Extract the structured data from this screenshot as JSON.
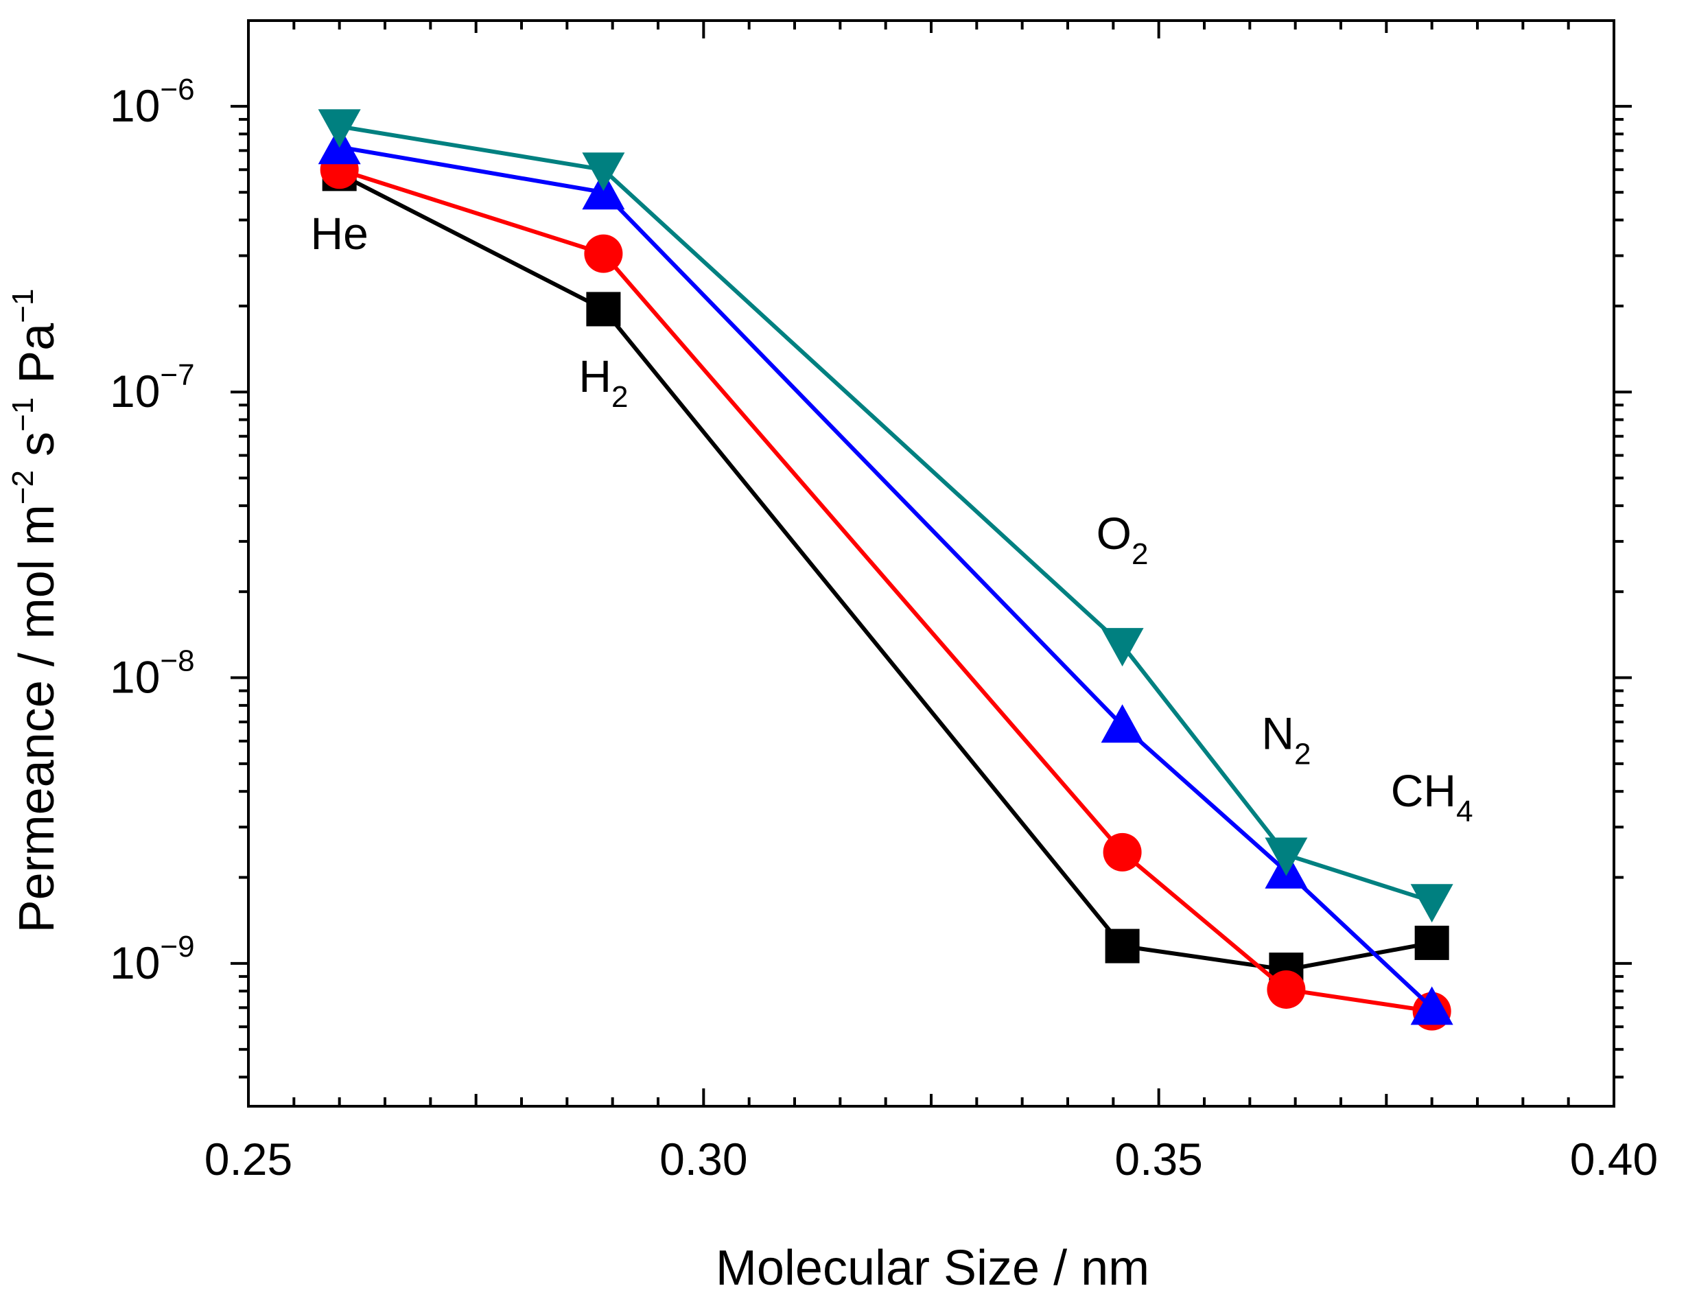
{
  "chart_data": {
    "type": "line",
    "title": "",
    "xlabel": "Molecular Size / nm",
    "ylabel": {
      "base": "Permeance / mol m",
      "m_exp": "−2",
      "s_text": " s",
      "s_exp": "−1",
      "pa_text": " Pa",
      "pa_exp": "−1"
    },
    "xlim": [
      0.25,
      0.4
    ],
    "ylim_log10": [
      -9.5,
      -5.7
    ],
    "yscale": "log",
    "x_ticks": [
      {
        "value": 0.25,
        "label": "0.25"
      },
      {
        "value": 0.3,
        "label": "0.30"
      },
      {
        "value": 0.35,
        "label": "0.35"
      },
      {
        "value": 0.4,
        "label": "0.40"
      }
    ],
    "y_ticks": [
      {
        "exp": -6,
        "base": "10",
        "sup": "−6"
      },
      {
        "exp": -7,
        "base": "10",
        "sup": "−7"
      },
      {
        "exp": -8,
        "base": "10",
        "sup": "−8"
      },
      {
        "exp": -9,
        "base": "10",
        "sup": "−9"
      }
    ],
    "gas_labels": [
      {
        "name": "He",
        "sub": "",
        "x": 0.26,
        "log_y": -6.5
      },
      {
        "name": "H",
        "sub": "2",
        "x": 0.289,
        "log_y": -7.0
      },
      {
        "name": "O",
        "sub": "2",
        "x": 0.346,
        "log_y": -7.55
      },
      {
        "name": "N",
        "sub": "2",
        "x": 0.364,
        "log_y": -8.25
      },
      {
        "name": "CH",
        "sub": "4",
        "x": 0.38,
        "log_y": -8.45
      }
    ],
    "x": [
      0.26,
      0.289,
      0.346,
      0.364,
      0.38
    ],
    "series": [
      {
        "name": "square",
        "color": "#000000",
        "marker": "square",
        "values": [
          5.8e-07,
          1.95e-07,
          1.15e-09,
          9.5e-10,
          1.18e-09
        ]
      },
      {
        "name": "circle",
        "color": "#ff0000",
        "marker": "circle",
        "values": [
          6e-07,
          3.05e-07,
          2.45e-09,
          8.1e-10,
          6.8e-10
        ]
      },
      {
        "name": "triangle-up",
        "color": "#0000ff",
        "marker": "triangle-up",
        "values": [
          7.2e-07,
          5e-07,
          6.8e-09,
          2.1e-09,
          7e-10
        ]
      },
      {
        "name": "triangle-down",
        "color": "#008080",
        "marker": "triangle-down",
        "values": [
          8.5e-07,
          6e-07,
          1.3e-08,
          2.4e-09,
          1.65e-09
        ]
      }
    ]
  }
}
